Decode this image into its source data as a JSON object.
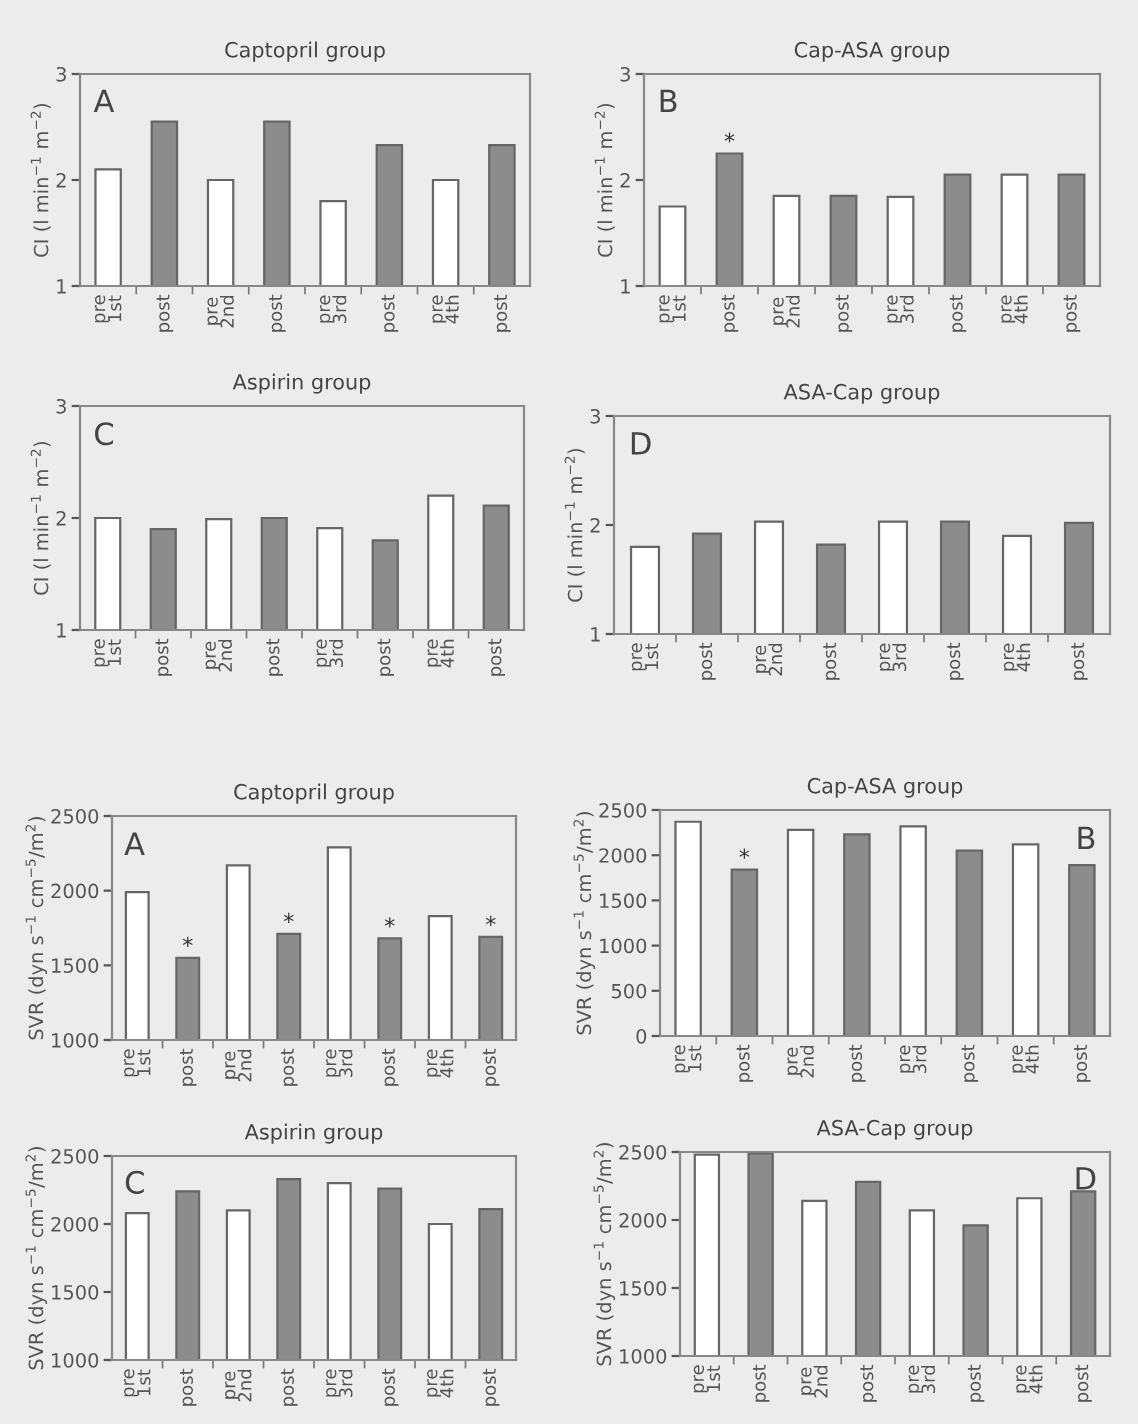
{
  "chart_data": [
    {
      "type": "bar",
      "title": "Captopril group",
      "ylabel": "CI (l min$^{−1}$ m$^{−2}$)",
      "annotations": [
        "A"
      ],
      "categories": [
        "pre\n1st",
        "post",
        "pre\n2nd",
        "post",
        "pre\n3rd",
        "post",
        "pre\n4th",
        "post"
      ],
      "values": [
        2.1,
        2.55,
        2.0,
        2.55,
        1.8,
        2.33,
        2.0,
        2.33
      ],
      "colors": [
        "#ffffff",
        "#8c8c8c",
        "#ffffff",
        "#8c8c8c",
        "#ffffff",
        "#8c8c8c",
        "#ffffff",
        "#8c8c8c"
      ],
      "ylim": [
        1,
        3
      ],
      "yticks": [
        1,
        2,
        3
      ]
    },
    {
      "type": "bar",
      "title": "Cap-ASA group",
      "ylabel": "CI (l min$^{−1}$ m$^{−2}$)",
      "annotations": [
        "B"
      ],
      "categories": [
        "pre\n1st",
        "post",
        "pre\n2nd",
        "post",
        "pre\n3rd",
        "post",
        "pre\n4th",
        "post"
      ],
      "values": [
        1.75,
        2.25,
        1.85,
        1.85,
        1.84,
        2.05,
        2.05,
        2.05
      ],
      "value_labels": [
        null,
        "*",
        null,
        null,
        null,
        null,
        null,
        null
      ],
      "colors": [
        "#ffffff",
        "#8c8c8c",
        "#ffffff",
        "#8c8c8c",
        "#ffffff",
        "#8c8c8c",
        "#ffffff",
        "#8c8c8c"
      ],
      "ylim": [
        1,
        3
      ],
      "yticks": [
        1,
        2,
        3
      ]
    },
    {
      "type": "bar",
      "title": "Aspirin group",
      "ylabel": "CI (l min$^{−1}$ m$^{−2}$)",
      "annotations": [
        "C"
      ],
      "categories": [
        "pre\n1st",
        "post",
        "pre\n2nd",
        "post",
        "pre\n3rd",
        "post",
        "pre\n4th",
        "post"
      ],
      "values": [
        2.0,
        1.9,
        1.99,
        2.0,
        1.91,
        1.8,
        2.2,
        2.11
      ],
      "colors": [
        "#ffffff",
        "#8c8c8c",
        "#ffffff",
        "#8c8c8c",
        "#ffffff",
        "#8c8c8c",
        "#ffffff",
        "#8c8c8c"
      ],
      "ylim": [
        1,
        3
      ],
      "yticks": [
        1,
        2,
        3
      ]
    },
    {
      "type": "bar",
      "title": "ASA-Cap group",
      "ylabel": "CI (l min$^{−1}$ m$^{−2}$)",
      "annotations": [
        "D"
      ],
      "categories": [
        "pre\n1st",
        "post",
        "pre\n2nd",
        "post",
        "pre\n3rd",
        "post",
        "pre\n4th",
        "post"
      ],
      "values": [
        1.8,
        1.92,
        2.03,
        1.82,
        2.03,
        2.03,
        1.9,
        2.02
      ],
      "colors": [
        "#ffffff",
        "#8c8c8c",
        "#ffffff",
        "#8c8c8c",
        "#ffffff",
        "#8c8c8c",
        "#ffffff",
        "#8c8c8c"
      ],
      "ylim": [
        1,
        3
      ],
      "yticks": [
        1,
        2,
        3
      ]
    },
    {
      "type": "bar",
      "title": "Captopril group",
      "ylabel": "SVR (dyn s$^{−1}$ cm$^{−5}$/m$^{2}$)",
      "annotations": [
        "A"
      ],
      "categories": [
        "pre\n1st",
        "post",
        "pre\n2nd",
        "post",
        "pre\n3rd",
        "post",
        "pre\n4th",
        "post"
      ],
      "values": [
        1990,
        1550,
        2170,
        1710,
        2290,
        1680,
        1830,
        1690
      ],
      "value_labels": [
        null,
        "*",
        null,
        "*",
        null,
        "*",
        null,
        "*"
      ],
      "colors": [
        "#ffffff",
        "#8c8c8c",
        "#ffffff",
        "#8c8c8c",
        "#ffffff",
        "#8c8c8c",
        "#ffffff",
        "#8c8c8c"
      ],
      "ylim": [
        1000,
        2500
      ],
      "yticks": [
        1000,
        1500,
        2000,
        2500
      ]
    },
    {
      "type": "bar",
      "title": "Cap-ASA group",
      "ylabel": "SVR (dyn s$^{−1}$ cm$^{−5}$/m$^{2}$)",
      "annotations": [
        "B"
      ],
      "categories": [
        "pre\n1st",
        "post",
        "pre\n2nd",
        "post",
        "pre\n3rd",
        "post",
        "pre\n4th",
        "post"
      ],
      "values": [
        2370,
        1840,
        2280,
        2230,
        2320,
        2050,
        2120,
        1890
      ],
      "value_labels": [
        null,
        "*",
        null,
        null,
        null,
        null,
        null,
        null
      ],
      "colors": [
        "#ffffff",
        "#8c8c8c",
        "#ffffff",
        "#8c8c8c",
        "#ffffff",
        "#8c8c8c",
        "#ffffff",
        "#8c8c8c"
      ],
      "ylim": [
        0,
        2500
      ],
      "yticks": [
        0,
        500,
        1000,
        1500,
        2000,
        2500
      ]
    },
    {
      "type": "bar",
      "title": "Aspirin group",
      "ylabel": "SVR (dyn s$^{−1}$ cm$^{−5}$/m$^{2}$)",
      "annotations": [
        "C"
      ],
      "categories": [
        "pre\n1st",
        "post",
        "pre\n2nd",
        "post",
        "pre\n3rd",
        "post",
        "pre\n4th",
        "post"
      ],
      "values": [
        2080,
        2240,
        2100,
        2330,
        2300,
        2260,
        2000,
        2110
      ],
      "colors": [
        "#ffffff",
        "#8c8c8c",
        "#ffffff",
        "#8c8c8c",
        "#ffffff",
        "#8c8c8c",
        "#ffffff",
        "#8c8c8c"
      ],
      "ylim": [
        1000,
        2500
      ],
      "yticks": [
        1000,
        1500,
        2000,
        2500
      ]
    },
    {
      "type": "bar",
      "title": "ASA-Cap group",
      "ylabel": "SVR (dyn s$^{−1}$ cm$^{−5}$/m$^{2}$)",
      "annotations": [
        "D"
      ],
      "categories": [
        "pre\n1st",
        "post",
        "pre\n2nd",
        "post",
        "pre\n3rd",
        "post",
        "pre\n4th",
        "post"
      ],
      "values": [
        2480,
        2490,
        2140,
        2280,
        2070,
        1960,
        2160,
        2210
      ],
      "colors": [
        "#ffffff",
        "#8c8c8c",
        "#ffffff",
        "#8c8c8c",
        "#ffffff",
        "#8c8c8c",
        "#ffffff",
        "#8c8c8c"
      ],
      "ylim": [
        1000,
        2500
      ],
      "yticks": [
        1000,
        1500,
        2000,
        2500
      ]
    }
  ]
}
